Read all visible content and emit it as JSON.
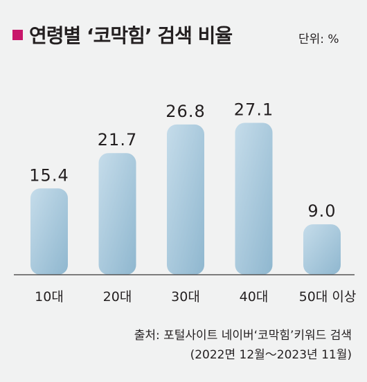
{
  "title": "연령별 ‘코막힘’ 검색 비율",
  "unit_label": "단위: %",
  "chart_data": {
    "type": "bar",
    "title": "연령별 ‘코막힘’ 검색 비율",
    "unit": "%",
    "categories": [
      "10대",
      "20대",
      "30대",
      "40대",
      "50대 이상"
    ],
    "values": [
      15.4,
      21.7,
      26.8,
      27.1,
      9.0
    ],
    "value_labels": [
      "15.4",
      "21.7",
      "26.8",
      "27.1",
      "9.0"
    ],
    "ylim": [
      0,
      30
    ],
    "grid": false,
    "legend": "none"
  },
  "source": {
    "line1": "출처: 포털사이트 네이버‘코막힘’키워드 검색",
    "line2": "(2022면 12월～2023년 11월)"
  },
  "colors": {
    "accent": "#c8176b",
    "bar_top": "#c5dcea",
    "bar_bottom": "#8fb7cf",
    "baseline": "#555555",
    "text": "#231f20",
    "background": "#f1f2f2"
  }
}
